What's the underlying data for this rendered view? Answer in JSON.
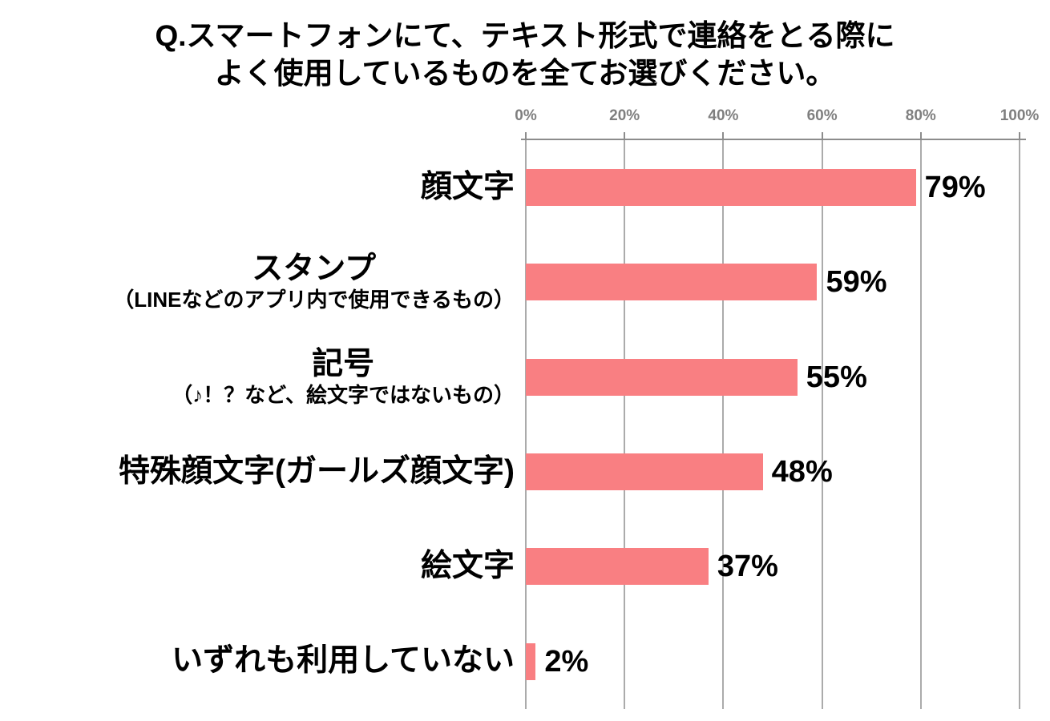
{
  "title": {
    "line1": "Q.スマートフォンにて、テキスト形式で連絡をとる際に",
    "line2": "よく使用しているものを全てお選びください。"
  },
  "axis": {
    "tick_labels": [
      "0%",
      "20%",
      "40%",
      "60%",
      "80%",
      "100%"
    ]
  },
  "colors": {
    "bar": "#f97f82",
    "gridline": "#ababab",
    "axis_line": "#8c8c8c",
    "tick_label_text": "#7f7f7f",
    "label_text": "#000000",
    "background": "#ffffff"
  },
  "chart_data": {
    "type": "bar",
    "orientation": "horizontal",
    "title": "Q.スマートフォンにて、テキスト形式で連絡をとる際によく使用しているものを全てお選びください。",
    "categories": [
      "顔文字",
      "スタンプ（LINEなどのアプリ内で使用できるもの）",
      "記号（♪！？など、絵文字ではないもの）",
      "特殊顔文字(ガールズ顔文字)",
      "絵文字",
      "いずれも利用していない"
    ],
    "values": [
      79,
      59,
      55,
      48,
      37,
      2
    ],
    "xlabel": "",
    "ylabel": "",
    "xlim": [
      0,
      100
    ],
    "x_ticks": [
      "0%",
      "20%",
      "40%",
      "60%",
      "80%",
      "100%"
    ],
    "grid": true,
    "legend": "none",
    "bar_color": "#f97f82",
    "value_label_position": "outside-end",
    "rows": [
      {
        "label": "顔文字",
        "sublabel": "",
        "value": 79,
        "value_label": "79%"
      },
      {
        "label": "スタンプ",
        "sublabel": "（LINEなどのアプリ内で使用できるもの）",
        "value": 59,
        "value_label": "59%"
      },
      {
        "label": "記号",
        "sublabel": "（♪！？など、絵文字ではないもの）",
        "value": 55,
        "value_label": "55%"
      },
      {
        "label": "特殊顔文字(ガールズ顔文字)",
        "sublabel": "",
        "value": 48,
        "value_label": "48%"
      },
      {
        "label": "絵文字",
        "sublabel": "",
        "value": 37,
        "value_label": "37%"
      },
      {
        "label": "いずれも利用していない",
        "sublabel": "",
        "value": 2,
        "value_label": "2%"
      }
    ]
  }
}
